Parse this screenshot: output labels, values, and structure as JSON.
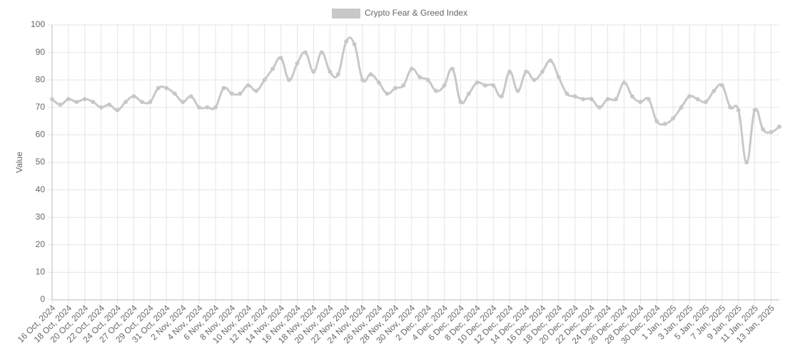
{
  "chart_data": {
    "type": "line",
    "y_label": "Value",
    "categories": [
      "16 Oct, 2024",
      null,
      "18 Oct, 2024",
      null,
      "20 Oct, 2024",
      null,
      "22 Oct, 2024",
      null,
      "24 Oct, 2024",
      null,
      "27 Oct, 2024",
      null,
      "29 Oct, 2024",
      null,
      "31 Oct, 2024",
      null,
      "2 Nov, 2024",
      null,
      "4 Nov, 2024",
      null,
      "6 Nov, 2024",
      null,
      "8 Nov, 2024",
      null,
      "10 Nov, 2024",
      null,
      "12 Nov, 2024",
      null,
      "14 Nov, 2024",
      null,
      "16 Nov, 2024",
      null,
      "18 Nov, 2024",
      null,
      "20 Nov, 2024",
      null,
      "22 Nov, 2024",
      null,
      "24 Nov, 2024",
      null,
      "26 Nov, 2024",
      null,
      "28 Nov, 2024",
      null,
      "30 Nov, 2024",
      null,
      "2 Dec, 2024",
      null,
      "4 Dec, 2024",
      null,
      "6 Dec, 2024",
      null,
      "8 Dec, 2024",
      null,
      "10 Dec, 2024",
      null,
      "12 Dec, 2024",
      null,
      "14 Dec, 2024",
      null,
      "16 Dec, 2024",
      null,
      "18 Dec, 2024",
      null,
      "20 Dec, 2024",
      null,
      "22 Dec, 2024",
      null,
      "24 Dec, 2024",
      null,
      "26 Dec, 2024",
      null,
      "28 Dec, 2024",
      null,
      "30 Dec, 2024",
      null,
      "1 Jan, 2025",
      null,
      "3 Jan, 2025",
      null,
      "5 Jan, 2025",
      null,
      "7 Jan, 2025",
      null,
      "9 Jan, 2025",
      null,
      "11 Jan, 2025",
      null,
      "13 Jan, 2025",
      null
    ],
    "series": [
      {
        "name": "Crypto Fear & Greed Index",
        "color": "#c8c8c8",
        "values": [
          73,
          71,
          73,
          72,
          73,
          72,
          70,
          71,
          69,
          72,
          74,
          72,
          72,
          77,
          77,
          75,
          72,
          74,
          70,
          70,
          70,
          77,
          75,
          75,
          78,
          76,
          80,
          84,
          88,
          80,
          86,
          90,
          83,
          90,
          83,
          82,
          94,
          93,
          80,
          82,
          79,
          75,
          77,
          78,
          84,
          81,
          80,
          76,
          78,
          84,
          72,
          75,
          79,
          78,
          78,
          74,
          83,
          76,
          83,
          80,
          83,
          87,
          81,
          75,
          74,
          73,
          73,
          70,
          73,
          73,
          79,
          74,
          72,
          73,
          65,
          64,
          66,
          70,
          74,
          73,
          72,
          76,
          78,
          70,
          69,
          50,
          69,
          62,
          61,
          63
        ]
      }
    ],
    "ylim": [
      0,
      100
    ],
    "yticks": [
      0,
      10,
      20,
      30,
      40,
      50,
      60,
      70,
      80,
      90,
      100
    ],
    "grid": true,
    "legend": "top"
  }
}
